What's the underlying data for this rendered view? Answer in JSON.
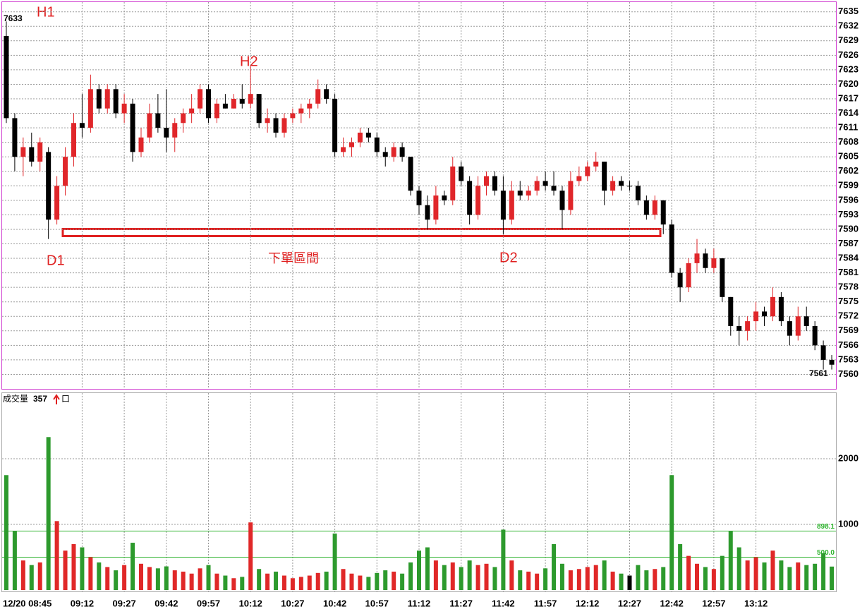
{
  "chart_data": [
    {
      "type": "candlestick",
      "x": [
        "08:45",
        "08:48",
        "08:51",
        "08:54",
        "08:57",
        "09:00",
        "09:03",
        "09:06",
        "09:09",
        "09:12",
        "09:15",
        "09:18",
        "09:21",
        "09:24",
        "09:27",
        "09:30",
        "09:33",
        "09:36",
        "09:39",
        "09:42",
        "09:45",
        "09:48",
        "09:51",
        "09:54",
        "09:57",
        "10:00",
        "10:03",
        "10:06",
        "10:09",
        "10:12",
        "10:15",
        "10:18",
        "10:21",
        "10:24",
        "10:27",
        "10:30",
        "10:33",
        "10:36",
        "10:39",
        "10:42",
        "10:45",
        "10:48",
        "10:51",
        "10:54",
        "10:57",
        "11:00",
        "11:03",
        "11:06",
        "11:09",
        "11:12",
        "11:15",
        "11:18",
        "11:21",
        "11:24",
        "11:27",
        "11:30",
        "11:33",
        "11:36",
        "11:39",
        "11:42",
        "11:45",
        "11:48",
        "11:51",
        "11:54",
        "11:57",
        "12:00",
        "12:03",
        "12:06",
        "12:09",
        "12:12",
        "12:15",
        "12:18",
        "12:21",
        "12:24",
        "12:27",
        "12:30",
        "12:33",
        "12:36",
        "12:39",
        "12:42",
        "12:45",
        "12:48",
        "12:51",
        "12:54",
        "12:57",
        "13:00",
        "13:03",
        "13:06",
        "13:09",
        "13:12",
        "13:15",
        "13:18",
        "13:21",
        "13:24",
        "13:27",
        "13:30",
        "13:33",
        "13:36",
        "13:39"
      ],
      "open": [
        7630,
        7613,
        7605,
        7607,
        7604,
        7606,
        7592,
        7599,
        7605,
        7612,
        7611,
        7619,
        7615,
        7619,
        7614,
        7616,
        7606,
        7609,
        7614,
        7611,
        7609,
        7612,
        7614,
        7615,
        7619,
        7613,
        7616,
        7615,
        7617,
        7616,
        7618,
        7612,
        7613,
        7610,
        7613,
        7614,
        7615,
        7616,
        7619,
        7617,
        7606,
        7607,
        7608,
        7610,
        7609,
        7606,
        7605,
        7607,
        7605,
        7598,
        7595,
        7592,
        7597,
        7596,
        7603,
        7600,
        7593,
        7599,
        7601,
        7598,
        7592,
        7598,
        7597,
        7598,
        7600,
        7599,
        7598,
        7594,
        7600,
        7601,
        7603,
        7604,
        7598,
        7600,
        7599,
        7599,
        7596,
        7593,
        7596,
        7591,
        7581,
        7578,
        7583,
        7585,
        7582,
        7584,
        7576,
        7570,
        7569,
        7571,
        7573,
        7572,
        7576,
        7571,
        7568,
        7572,
        7570,
        7566,
        7563
      ],
      "high": [
        7633,
        7614,
        7609,
        7610,
        7609,
        7607,
        7601,
        7607,
        7614,
        7618,
        7622,
        7620,
        7620,
        7620,
        7618,
        7617,
        7611,
        7616,
        7618,
        7619,
        7613,
        7615,
        7618,
        7620,
        7620,
        7617,
        7618,
        7618,
        7620,
        7624,
        7618,
        7615,
        7614,
        7614,
        7615,
        7616,
        7617,
        7621,
        7620,
        7618,
        7609,
        7609,
        7611,
        7611,
        7610,
        7607,
        7608,
        7608,
        7605,
        7599,
        7597,
        7599,
        7598,
        7605,
        7604,
        7601,
        7601,
        7602,
        7602,
        7601,
        7600,
        7600,
        7599,
        7601,
        7602,
        7602,
        7599,
        7602,
        7603,
        7604,
        7606,
        7604,
        7601,
        7601,
        7600,
        7600,
        7597,
        7597,
        7596,
        7592,
        7582,
        7584,
        7588,
        7586,
        7586,
        7584,
        7576,
        7572,
        7572,
        7575,
        7574,
        7578,
        7577,
        7572,
        7574,
        7574,
        7571,
        7567,
        7564
      ],
      "low": [
        7612,
        7602,
        7601,
        7603,
        7602,
        7588,
        7591,
        7597,
        7603,
        7609,
        7610,
        7614,
        7614,
        7613,
        7612,
        7604,
        7605,
        7608,
        7610,
        7606,
        7606,
        7610,
        7612,
        7614,
        7612,
        7612,
        7615,
        7615,
        7615,
        7615,
        7611,
        7610,
        7609,
        7609,
        7612,
        7612,
        7613,
        7615,
        7616,
        7605,
        7605,
        7605,
        7607,
        7608,
        7605,
        7603,
        7604,
        7604,
        7597,
        7593,
        7590,
        7591,
        7595,
        7595,
        7599,
        7591,
        7592,
        7597,
        7597,
        7589,
        7591,
        7596,
        7596,
        7597,
        7598,
        7597,
        7590,
        7593,
        7599,
        7600,
        7602,
        7595,
        7597,
        7598,
        7598,
        7595,
        7592,
        7592,
        7589,
        7580,
        7575,
        7577,
        7581,
        7581,
        7581,
        7575,
        7568,
        7566,
        7567,
        7569,
        7570,
        7571,
        7570,
        7566,
        7567,
        7569,
        7565,
        7561,
        7561
      ],
      "close": [
        7613,
        7605,
        7607,
        7604,
        7608,
        7592,
        7599,
        7605,
        7612,
        7611,
        7619,
        7615,
        7619,
        7614,
        7616,
        7606,
        7609,
        7614,
        7611,
        7609,
        7612,
        7614,
        7615,
        7619,
        7613,
        7616,
        7615,
        7617,
        7616,
        7618,
        7612,
        7613,
        7610,
        7613,
        7614,
        7615,
        7616,
        7619,
        7617,
        7606,
        7607,
        7608,
        7610,
        7609,
        7606,
        7605,
        7607,
        7605,
        7598,
        7595,
        7592,
        7597,
        7596,
        7603,
        7600,
        7593,
        7599,
        7601,
        7598,
        7592,
        7598,
        7597,
        7598,
        7600,
        7599,
        7598,
        7594,
        7600,
        7601,
        7603,
        7604,
        7598,
        7600,
        7599,
        7599,
        7596,
        7593,
        7596,
        7591,
        7581,
        7578,
        7583,
        7585,
        7582,
        7584,
        7576,
        7570,
        7569,
        7571,
        7573,
        7572,
        7576,
        7571,
        7568,
        7572,
        7570,
        7566,
        7563,
        7562
      ],
      "up_color": "#e0262a",
      "down_color": "#000000",
      "ylim": [
        7557,
        7637
      ],
      "yticks": [
        7560,
        7563,
        7566,
        7569,
        7572,
        7575,
        7578,
        7581,
        7584,
        7587,
        7590,
        7593,
        7596,
        7599,
        7602,
        7605,
        7608,
        7611,
        7614,
        7617,
        7620,
        7623,
        7626,
        7629,
        7632,
        7635
      ],
      "xticks": [
        {
          "value": "08:45",
          "label": "12/20 08:45"
        },
        "09:12",
        "09:27",
        "09:42",
        "09:57",
        "10:12",
        "10:27",
        "10:42",
        "10:57",
        "11:12",
        "11:27",
        "11:42",
        "11:57",
        "12:12",
        "12:27",
        "12:42",
        "12:57",
        "13:12"
      ],
      "grid": true,
      "high_label": 7633,
      "low_label": 7561,
      "annotations": [
        "H1",
        "H2",
        "D1",
        "D2",
        "下單區間"
      ]
    },
    {
      "type": "bar",
      "title": "成交量",
      "last_value": 357,
      "unit": "口",
      "values": [
        1750,
        900,
        450,
        380,
        420,
        2330,
        1050,
        600,
        700,
        650,
        500,
        420,
        350,
        300,
        380,
        720,
        400,
        350,
        330,
        360,
        300,
        280,
        250,
        330,
        380,
        250,
        220,
        180,
        200,
        1030,
        320,
        250,
        280,
        220,
        180,
        200,
        220,
        260,
        280,
        860,
        320,
        250,
        220,
        200,
        260,
        300,
        280,
        250,
        420,
        600,
        650,
        450,
        380,
        420,
        350,
        450,
        380,
        400,
        350,
        920,
        450,
        300,
        280,
        250,
        330,
        700,
        400,
        300,
        320,
        350,
        380,
        450,
        280,
        250,
        220,
        380,
        300,
        320,
        350,
        1750,
        700,
        520,
        400,
        350,
        320,
        520,
        900,
        650,
        450,
        500,
        420,
        600,
        450,
        350,
        420,
        380,
        400,
        560,
        357
      ],
      "colors": {
        "up": "#e02828",
        "down": "#2d9a2d",
        "flat": "#000000"
      },
      "ylim": [
        0,
        3000
      ],
      "yticks": [
        1000,
        2000
      ],
      "grid": true,
      "reference_lines": [
        898.1,
        {
          "value": 500,
          "label": "500.0"
        }
      ],
      "reference_color": "#2db32d"
    }
  ]
}
